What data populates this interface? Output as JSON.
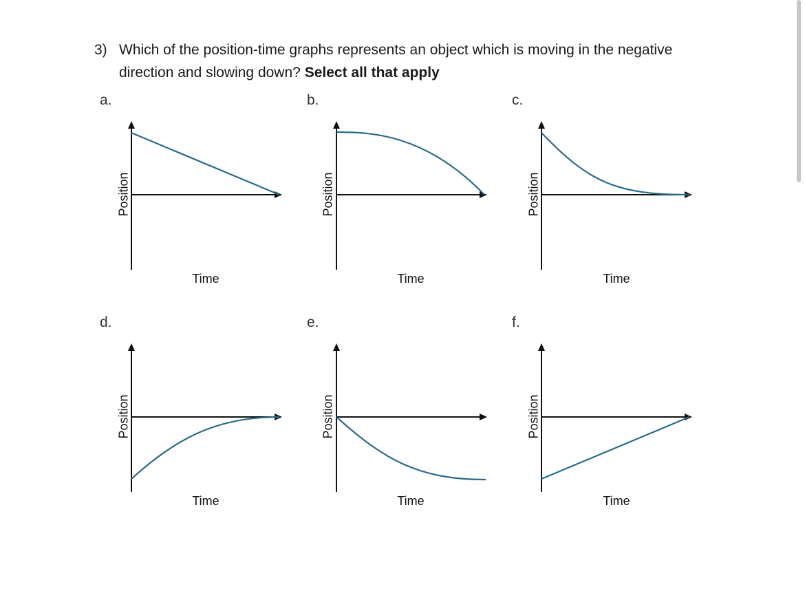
{
  "question": {
    "number": "3)",
    "text": "Which of the position-time graphs represents an object which is moving in the negative direction and slowing down?",
    "emphasis": "Select all that apply"
  },
  "graphs": [
    {
      "label": "a.",
      "xlabel": "Time",
      "ylabel": "Position",
      "curve": "linear-decreasing-to-zero"
    },
    {
      "label": "b.",
      "xlabel": "Time",
      "ylabel": "Position",
      "curve": "concave-down-decreasing-to-zero"
    },
    {
      "label": "c.",
      "xlabel": "Time",
      "ylabel": "Position",
      "curve": "concave-up-decreasing-to-zero"
    },
    {
      "label": "d.",
      "xlabel": "Time",
      "ylabel": "Position",
      "curve": "concave-down-increasing-to-zero"
    },
    {
      "label": "e.",
      "xlabel": "Time",
      "ylabel": "Position",
      "curve": "concave-up-decreasing-below-zero"
    },
    {
      "label": "f.",
      "xlabel": "Time",
      "ylabel": "Position",
      "curve": "linear-increasing-to-zero"
    }
  ],
  "colors": {
    "curve": "#2a6a8c",
    "axis": "#111111"
  }
}
